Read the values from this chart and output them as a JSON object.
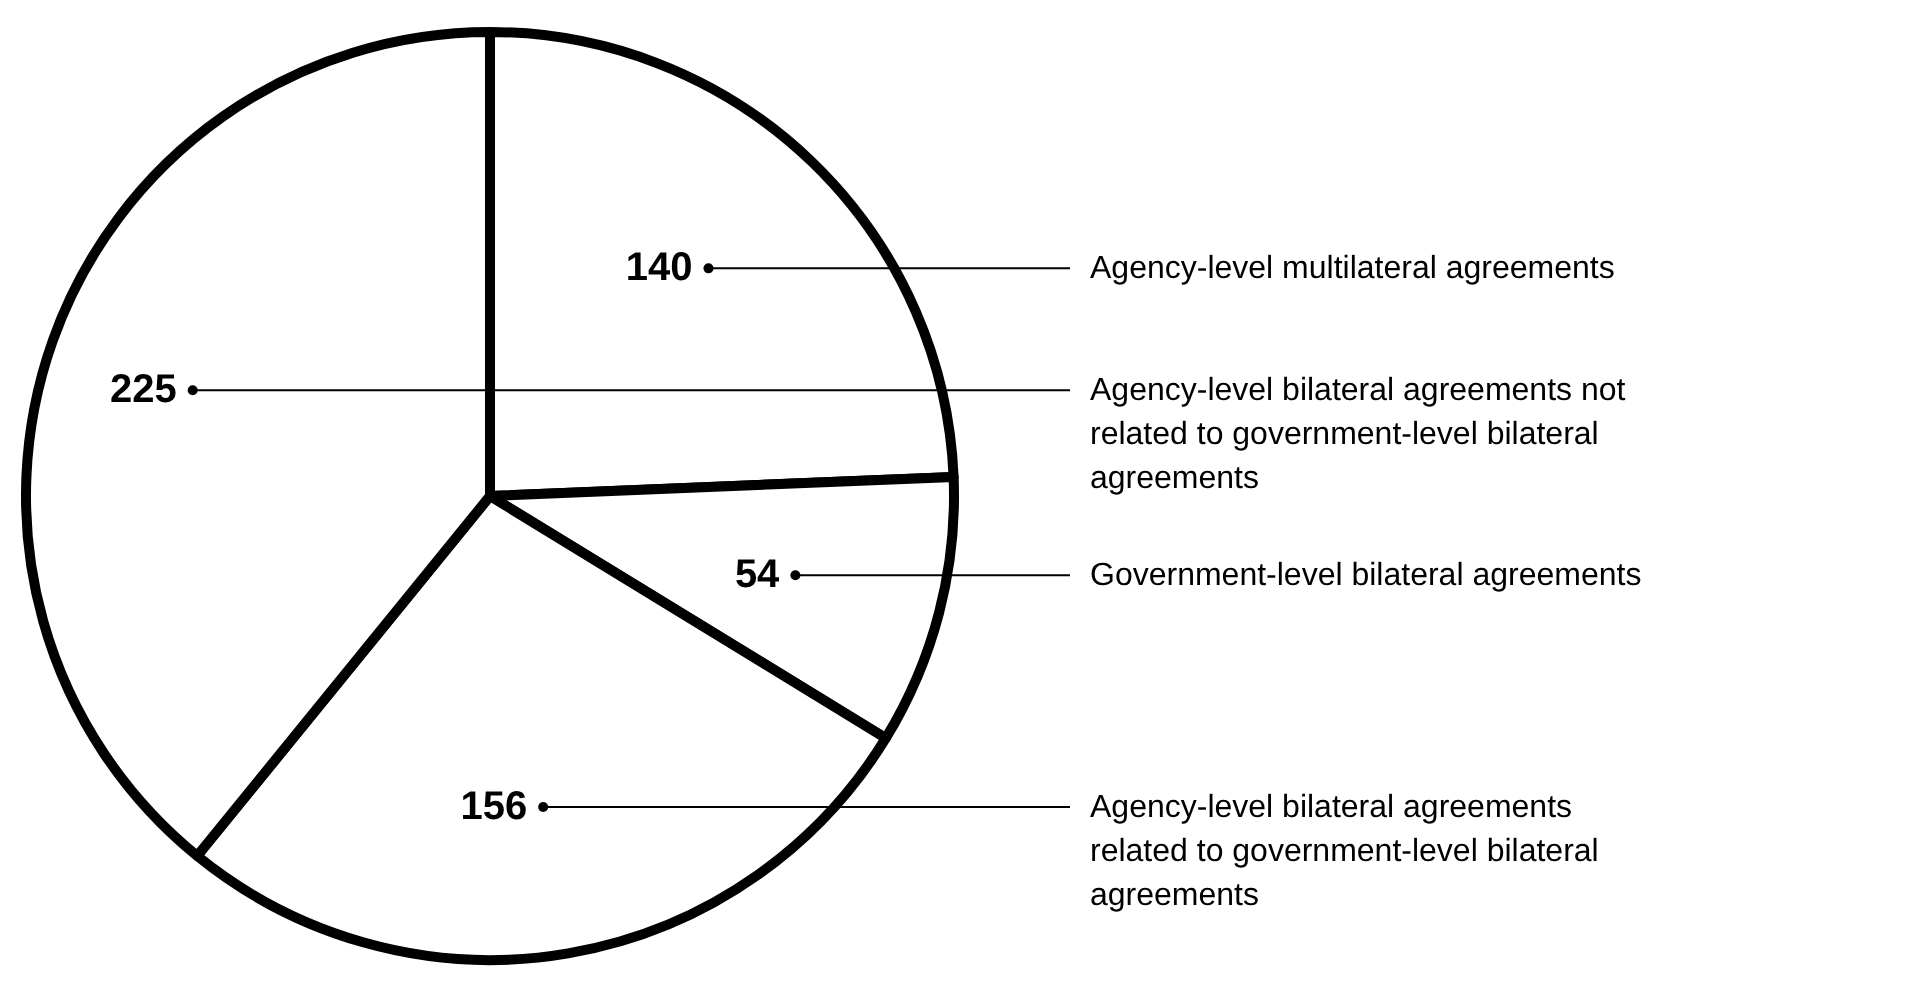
{
  "chart_data": {
    "type": "pie",
    "categories": [
      "Agency-level multilateral agreements",
      "Government-level bilateral agreements",
      "Agency-level bilateral agreements related to government-level bilateral agreements",
      "Agency-level bilateral agreements not related to government-level bilateral agreements"
    ],
    "values": [
      140,
      54,
      156,
      225
    ],
    "colors": [
      "#ffffff",
      "#ffffff",
      "#ffffff",
      "#ffffff"
    ],
    "data_labels": true
  }
}
